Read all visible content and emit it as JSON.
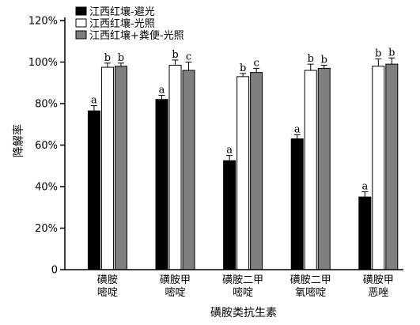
{
  "chart_data": {
    "type": "bar",
    "ylabel": "降解率",
    "xlabel": "磺胺类抗生素",
    "ylim": [
      0,
      120
    ],
    "yticks": [
      0,
      20,
      40,
      60,
      80,
      100,
      120
    ],
    "ytick_labels": [
      "0",
      "20%",
      "40%",
      "60%",
      "80%",
      "100%",
      "120%"
    ],
    "categories": [
      [
        "磺胺",
        "嘧啶"
      ],
      [
        "磺胺甲",
        "嘧啶"
      ],
      [
        "磺胺二甲",
        "嘧啶"
      ],
      [
        "磺胺二甲",
        "氧嘧啶"
      ],
      [
        "磺胺甲",
        "恶唑"
      ]
    ],
    "legend_position": "top-left",
    "series": [
      {
        "name": "江西红壤-避光",
        "color": "#000000",
        "values": [
          76.5,
          82,
          52.5,
          63,
          35
        ],
        "errors": [
          2.5,
          2,
          2.5,
          2,
          2.5
        ],
        "labels": [
          "a",
          "a",
          "a",
          "a",
          "a"
        ]
      },
      {
        "name": "江西红壤-光照",
        "color": "#ffffff",
        "values": [
          97.5,
          98.5,
          93,
          96,
          98
        ],
        "errors": [
          2,
          2.5,
          1.5,
          3,
          3.5
        ],
        "labels": [
          "b",
          "b",
          "b",
          "b",
          "b"
        ]
      },
      {
        "name": "江西红壤+粪便-光照",
        "color": "#7f7f7f",
        "values": [
          98,
          96,
          95,
          97,
          99
        ],
        "errors": [
          1.5,
          4,
          2,
          1.5,
          3
        ],
        "labels": [
          "b",
          "c",
          "c",
          "b",
          "b"
        ]
      }
    ]
  }
}
